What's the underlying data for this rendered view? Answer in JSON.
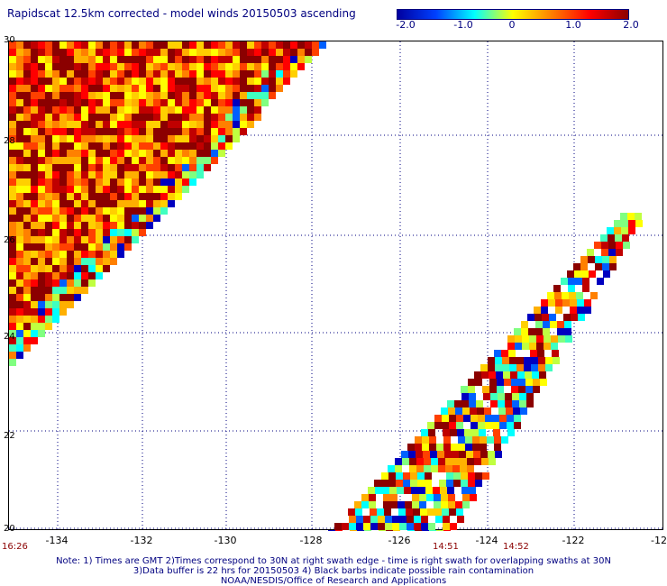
{
  "title": "Rapidscat 12.5km corrected - model winds 20150503 ascending",
  "colorbar": {
    "ticks": [
      "-2.0",
      "-1.0",
      "0",
      "1.0",
      "2.0"
    ],
    "colors": [
      "#0000a0",
      "#0040ff",
      "#00ffff",
      "#ffff00",
      "#ff8000",
      "#ff0000",
      "#8b0000"
    ]
  },
  "map": {
    "x_ticks": [
      "-134",
      "-132",
      "-130",
      "-128",
      "-126",
      "-124",
      "-122",
      "-12"
    ],
    "y_ticks": [
      "30",
      "28",
      "26",
      "24",
      "22",
      "20"
    ],
    "lon_range": [
      -135,
      -120
    ],
    "lat_range": [
      20,
      30
    ]
  },
  "times": [
    "16:26",
    "14:51",
    "14:52"
  ],
  "notes": [
    "Note: 1) Times are GMT 2)Times correspond to 30N at right swath edge - time is right swath for overlapping swaths at 30N",
    "3)Data buffer is 22 hrs for 20150503 4) Black barbs indicate possible rain contamination",
    "NOAA/NESDIS/Office of Research and Applications"
  ]
}
